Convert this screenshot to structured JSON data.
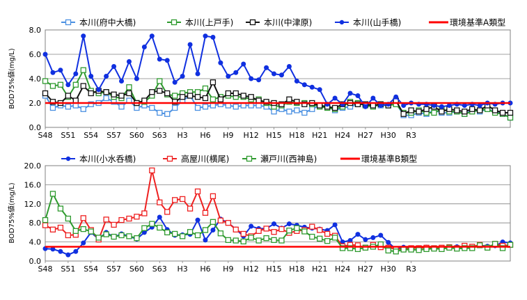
{
  "chart_data": [
    {
      "type": "line",
      "title": "",
      "ylabel": "BOD75%値(mg/L)",
      "ylim": [
        0,
        8
      ],
      "yticks": [
        "0.0",
        "2.0",
        "4.0",
        "6.0",
        "8.0"
      ],
      "ytick_values": [
        0,
        2,
        4,
        6,
        8
      ],
      "xtick_labels": [
        "S48",
        "S51",
        "S54",
        "S57",
        "S60",
        "S63",
        "H3",
        "H6",
        "H9",
        "H12",
        "H15",
        "H18",
        "H21",
        "H24",
        "H27",
        "H30",
        "R3"
      ],
      "grid": true,
      "legend_position": "top",
      "series": [
        {
          "name": "本川(府中大橋)",
          "color": "#4a90e2",
          "marker": "open-square",
          "values": [
            2.6,
            1.6,
            1.8,
            1.7,
            1.8,
            1.5,
            1.9,
            2.0,
            2.4,
            2.1,
            1.7,
            2.2,
            1.6,
            1.8,
            1.6,
            1.2,
            1.1,
            1.6,
            2.2,
            2.6,
            1.6,
            1.7,
            1.8,
            1.9,
            1.8,
            1.7,
            1.8,
            1.8,
            1.8,
            1.7,
            1.3,
            1.5,
            1.3,
            1.4,
            1.2,
            1.5,
            1.8,
            1.7,
            1.4,
            1.6,
            1.7,
            1.9,
            1.9,
            1.8,
            1.8,
            1.8,
            2.0,
            1.0,
            1.0,
            1.2,
            1.1,
            1.4,
            1.2,
            1.2,
            1.3,
            1.1,
            1.4,
            1.3,
            1.5,
            1.3,
            1.1,
            0.8
          ]
        },
        {
          "name": "本川(上戸手)",
          "color": "#2e9a2e",
          "marker": "open-square",
          "values": [
            3.8,
            3.4,
            3.5,
            2.5,
            3.5,
            4.7,
            3.0,
            2.8,
            2.9,
            2.5,
            2.4,
            3.3,
            2.0,
            2.1,
            2.6,
            3.8,
            2.7,
            2.6,
            2.8,
            2.9,
            2.9,
            3.2,
            2.3,
            2.5,
            2.6,
            2.5,
            2.5,
            2.3,
            2.3,
            2.0,
            1.7,
            1.8,
            2.1,
            2.0,
            2.0,
            1.9,
            1.7,
            1.6,
            1.5,
            1.7,
            2.1,
            2.0,
            1.8,
            1.7,
            1.9,
            1.8,
            1.9,
            1.2,
            1.2,
            1.4,
            1.2,
            1.2,
            1.5,
            1.3,
            1.3,
            1.1,
            1.3,
            1.4,
            1.5,
            1.2,
            1.1,
            0.8
          ]
        },
        {
          "name": "本川(中津原)",
          "color": "#111111",
          "marker": "open-square",
          "values": [
            2.8,
            2.1,
            2.0,
            2.6,
            2.2,
            3.4,
            2.8,
            3.0,
            2.9,
            2.7,
            2.6,
            2.8,
            2.0,
            2.2,
            2.9,
            3.0,
            2.8,
            2.1,
            2.5,
            2.6,
            2.5,
            2.4,
            3.7,
            2.3,
            2.8,
            2.8,
            2.6,
            2.5,
            2.2,
            2.1,
            2.0,
            1.9,
            2.3,
            2.1,
            1.9,
            2.0,
            1.8,
            1.7,
            1.6,
            1.9,
            2.0,
            1.9,
            1.9,
            1.8,
            1.9,
            1.8,
            2.2,
            1.1,
            1.4,
            1.3,
            1.5,
            1.7,
            1.3,
            1.5,
            1.4,
            1.3,
            1.5,
            1.4,
            1.8,
            1.4,
            1.2,
            1.2
          ]
        },
        {
          "name": "本川(山手橋)",
          "color": "#1030e0",
          "marker": "filled-circle",
          "values": [
            6.0,
            4.5,
            4.7,
            3.5,
            4.4,
            7.5,
            4.2,
            3.1,
            4.2,
            5.0,
            3.8,
            5.4,
            4.0,
            6.6,
            7.5,
            5.6,
            5.5,
            3.7,
            4.2,
            6.8,
            4.4,
            7.5,
            7.4,
            5.3,
            4.2,
            4.5,
            5.2,
            4.0,
            3.9,
            4.9,
            4.4,
            4.3,
            5.0,
            3.8,
            3.5,
            3.3,
            3.1,
            1.9,
            2.4,
            1.9,
            2.8,
            2.6,
            1.7,
            2.4,
            1.8,
            1.9,
            2.5,
            1.8,
            2.0,
            1.9,
            1.9,
            1.8,
            1.7,
            1.8,
            1.9,
            1.8,
            1.9,
            1.8,
            2.0,
            1.9,
            2.0,
            2.0
          ]
        },
        {
          "name": "環境基準A類型",
          "color": "#ff0000",
          "marker": "none",
          "constant": 2.0
        }
      ]
    },
    {
      "type": "line",
      "title": "",
      "ylabel": "BOD75%値(mg/L)",
      "ylim": [
        0,
        20
      ],
      "yticks": [
        "0.0",
        "4.0",
        "8.0",
        "12.0",
        "16.0",
        "20.0"
      ],
      "ytick_values": [
        0,
        4,
        8,
        12,
        16,
        20
      ],
      "xtick_labels": [
        "S48",
        "S51",
        "S54",
        "S57",
        "S60",
        "S63",
        "H3",
        "H6",
        "H9",
        "H12",
        "H15",
        "H18",
        "H21",
        "H24",
        "H27",
        "H30",
        "R3"
      ],
      "grid": true,
      "legend_position": "top",
      "series": [
        {
          "name": "本川(小水呑橋)",
          "color": "#1030e0",
          "marker": "filled-circle",
          "values": [
            2.6,
            2.5,
            2.0,
            1.3,
            2.0,
            3.8,
            6.0,
            4.6,
            6.0,
            5.0,
            5.7,
            5.2,
            4.6,
            6.0,
            7.1,
            9.2,
            6.6,
            5.4,
            5.5,
            5.6,
            8.6,
            4.4,
            6.5,
            8.8,
            8.0,
            6.7,
            5.2,
            7.3,
            6.8,
            6.8,
            7.8,
            6.9,
            7.8,
            7.5,
            7.1,
            6.9,
            6.7,
            6.4,
            7.6,
            4.0,
            4.3,
            5.6,
            4.5,
            4.9,
            5.4,
            3.9,
            2.5,
            2.9,
            2.8,
            2.8,
            2.9,
            2.7,
            2.8,
            3.0,
            3.0,
            2.9,
            3.0,
            3.3,
            3.1,
            3.2,
            4.0,
            3.8
          ]
        },
        {
          "name": "高屋川(横尾)",
          "color": "#ee2020",
          "marker": "open-square",
          "values": [
            7.5,
            6.6,
            7.0,
            5.4,
            5.5,
            9.0,
            6.5,
            4.5,
            8.7,
            7.6,
            8.6,
            8.9,
            9.3,
            10.0,
            19.0,
            12.3,
            10.3,
            12.8,
            13.0,
            11.0,
            14.6,
            10.1,
            13.6,
            8.5,
            8.0,
            6.6,
            5.7,
            5.2,
            6.3,
            6.8,
            6.1,
            6.7,
            5.9,
            6.3,
            6.5,
            7.2,
            6.5,
            5.7,
            5.3,
            3.1,
            3.4,
            3.3,
            2.8,
            3.4,
            2.9,
            2.8,
            2.5,
            2.5,
            2.7,
            2.7,
            2.8,
            2.7,
            2.8,
            2.9,
            2.7,
            3.2,
            3.0,
            3.4,
            2.8,
            3.6,
            3.2,
            3.4
          ]
        },
        {
          "name": "瀬戸川(西神島)",
          "color": "#2e9a2e",
          "marker": "open-square",
          "values": [
            8.6,
            14.1,
            11.0,
            8.9,
            6.3,
            6.7,
            6.2,
            4.9,
            5.6,
            5.1,
            5.4,
            5.2,
            4.8,
            6.9,
            7.8,
            7.0,
            6.0,
            5.7,
            5.2,
            6.1,
            5.4,
            6.5,
            8.2,
            5.8,
            4.4,
            4.3,
            4.1,
            4.9,
            4.3,
            4.8,
            4.4,
            4.3,
            6.4,
            6.9,
            6.2,
            5.1,
            4.7,
            4.2,
            4.9,
            2.7,
            2.7,
            2.5,
            2.8,
            3.0,
            3.5,
            2.2,
            2.0,
            2.4,
            2.4,
            2.3,
            2.5,
            2.6,
            2.5,
            2.8,
            2.6,
            2.7,
            2.7,
            3.3,
            2.8,
            3.6,
            2.7,
            3.4
          ]
        },
        {
          "name": "環境基準B類型",
          "color": "#ff0000",
          "marker": "none",
          "constant": 3.0
        }
      ]
    }
  ]
}
